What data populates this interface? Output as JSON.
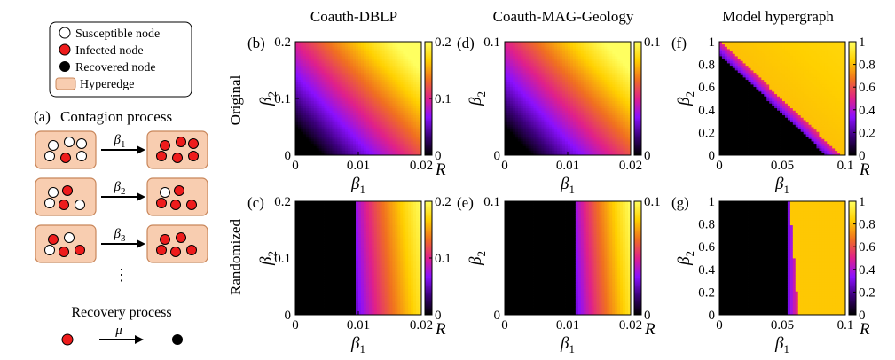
{
  "legend": {
    "susceptible": "Susceptible node",
    "infected": "Infected node",
    "recovered": "Recovered node",
    "hyperedge": "Hyperedge"
  },
  "panel_a": {
    "label": "(a)",
    "title": "Contagion process",
    "arrows": [
      {
        "sym": "β",
        "sub": "1"
      },
      {
        "sym": "β",
        "sub": "2"
      },
      {
        "sym": "β",
        "sub": "3"
      }
    ],
    "dots": "⋮",
    "recovery_title": "Recovery process",
    "recovery_arrow": "μ"
  },
  "columns": [
    "Coauth-DBLP",
    "Coauth-MAG-Geology",
    "Model hypergraph"
  ],
  "rows": [
    "Original",
    "Randomized"
  ],
  "colors": {
    "susceptible": "#ffffff",
    "infected": "#ee1c1c",
    "recovered": "#000000",
    "hyperedge_fill": "#f8cdb0",
    "hyperedge_stroke": "#c8865a",
    "colormap": [
      "#000000",
      "#3a0078",
      "#8a10ff",
      "#e0208a",
      "#f07020",
      "#ffd000",
      "#ffff60"
    ]
  },
  "chart_data": [
    {
      "type": "heatmap",
      "panel": "(b)",
      "dataset": "Coauth-DBLP",
      "row": "Original",
      "xlabel": "β1",
      "ylabel": "β2",
      "xlim": [
        0,
        0.02
      ],
      "ylim": [
        0,
        0.2
      ],
      "xticks": [
        "0",
        "0.01",
        "0.02"
      ],
      "yticks": [
        "0",
        "0.1",
        "0.2"
      ],
      "colorbar": {
        "label": "R",
        "range": [
          0,
          0.2
        ],
        "ticks": [
          "0",
          "0.1",
          "0.2"
        ]
      }
    },
    {
      "type": "heatmap",
      "panel": "(d)",
      "dataset": "Coauth-MAG-Geology",
      "row": "Original",
      "xlabel": "β1",
      "ylabel": "β2",
      "xlim": [
        0,
        0.02
      ],
      "ylim": [
        0,
        0.1
      ],
      "xticks": [
        "0",
        "0.01",
        "0.02"
      ],
      "yticks": [
        "0",
        "0.1"
      ],
      "colorbar": {
        "label": "",
        "range": [
          0,
          0.1
        ],
        "ticks": [
          "0",
          "0.1"
        ]
      }
    },
    {
      "type": "heatmap",
      "panel": "(f)",
      "dataset": "Model hypergraph",
      "row": "Original",
      "xlabel": "β1",
      "ylabel": "β2",
      "xlim": [
        0,
        0.1
      ],
      "ylim": [
        0,
        1
      ],
      "xticks": [
        "0",
        "0.05",
        "0.1"
      ],
      "yticks": [
        "0",
        "0.2",
        "0.4",
        "0.6",
        "0.8",
        "1"
      ],
      "colorbar": {
        "label": "R",
        "range": [
          0,
          1
        ],
        "ticks": [
          "0",
          "0.2",
          "0.4",
          "0.6",
          "0.8",
          "1"
        ]
      }
    },
    {
      "type": "heatmap",
      "panel": "(c)",
      "dataset": "Coauth-DBLP",
      "row": "Randomized",
      "xlabel": "β1",
      "ylabel": "β2",
      "xlim": [
        0,
        0.02
      ],
      "ylim": [
        0,
        0.2
      ],
      "xticks": [
        "0",
        "0.01",
        "0.02"
      ],
      "yticks": [
        "0",
        "0.1",
        "0.2"
      ],
      "colorbar": {
        "label": "R",
        "range": [
          0,
          0.2
        ],
        "ticks": [
          "0",
          "0.1",
          "0.2"
        ]
      }
    },
    {
      "type": "heatmap",
      "panel": "(e)",
      "dataset": "Coauth-MAG-Geology",
      "row": "Randomized",
      "xlabel": "β1",
      "ylabel": "β2",
      "xlim": [
        0,
        0.02
      ],
      "ylim": [
        0,
        0.1
      ],
      "xticks": [
        "0",
        "0.01",
        "0.02"
      ],
      "yticks": [
        "0",
        "0.1"
      ],
      "colorbar": {
        "label": "R",
        "range": [
          0,
          0.1
        ],
        "ticks": [
          "0",
          "0.1"
        ]
      }
    },
    {
      "type": "heatmap",
      "panel": "(g)",
      "dataset": "Model hypergraph",
      "row": "Randomized",
      "xlabel": "β1",
      "ylabel": "β2",
      "xlim": [
        0,
        0.1
      ],
      "ylim": [
        0,
        1
      ],
      "xticks": [
        "0",
        "0.05",
        "0.1"
      ],
      "yticks": [
        "0",
        "0.2",
        "0.4",
        "0.6",
        "0.8",
        "1"
      ],
      "colorbar": {
        "label": "R",
        "range": [
          0,
          1
        ],
        "ticks": [
          "0",
          "0.2",
          "0.4",
          "0.6",
          "0.8",
          "1"
        ]
      }
    }
  ]
}
